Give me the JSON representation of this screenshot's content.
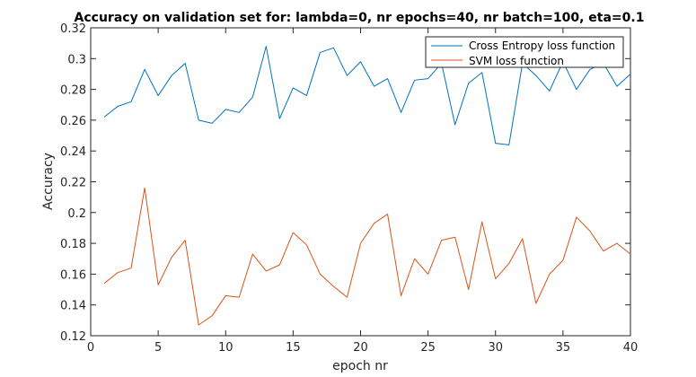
{
  "chart_data": {
    "type": "line",
    "title": "Accuracy on validation set for: lambda=0, nr epochs=40, nr batch=100, eta=0.1",
    "xlabel": "epoch nr",
    "ylabel": "Accuracy",
    "xlim": [
      0,
      40
    ],
    "ylim": [
      0.12,
      0.32
    ],
    "xticks": [
      0,
      5,
      10,
      15,
      20,
      25,
      30,
      35,
      40
    ],
    "xtick_labels": [
      "0",
      "5",
      "10",
      "15",
      "20",
      "25",
      "30",
      "35",
      "40"
    ],
    "yticks": [
      0.12,
      0.14,
      0.16,
      0.18,
      0.2,
      0.22,
      0.24,
      0.26,
      0.28,
      0.3,
      0.32
    ],
    "ytick_labels": [
      "0.12",
      "0.14",
      "0.16",
      "0.18",
      "0.2",
      "0.22",
      "0.24",
      "0.26",
      "0.28",
      "0.3",
      "0.32"
    ],
    "grid": false,
    "legend_position": "top-right",
    "x": [
      1,
      2,
      3,
      4,
      5,
      6,
      7,
      8,
      9,
      10,
      11,
      12,
      13,
      14,
      15,
      16,
      17,
      18,
      19,
      20,
      21,
      22,
      23,
      24,
      25,
      26,
      27,
      28,
      29,
      30,
      31,
      32,
      33,
      34,
      35,
      36,
      37,
      38,
      39,
      40
    ],
    "series": [
      {
        "name": "Cross Entropy loss function",
        "color": "#0072bd",
        "values": [
          0.262,
          0.269,
          0.272,
          0.293,
          0.276,
          0.289,
          0.297,
          0.26,
          0.258,
          0.267,
          0.265,
          0.275,
          0.308,
          0.261,
          0.281,
          0.276,
          0.304,
          0.307,
          0.289,
          0.298,
          0.282,
          0.287,
          0.265,
          0.286,
          0.287,
          0.297,
          0.257,
          0.284,
          0.291,
          0.245,
          0.244,
          0.297,
          0.289,
          0.279,
          0.298,
          0.28,
          0.293,
          0.297,
          0.282,
          0.29
        ]
      },
      {
        "name": "SVM loss function",
        "color": "#d95319",
        "values": [
          0.154,
          0.161,
          0.164,
          0.216,
          0.153,
          0.171,
          0.182,
          0.127,
          0.133,
          0.146,
          0.145,
          0.173,
          0.162,
          0.166,
          0.187,
          0.179,
          0.16,
          0.152,
          0.145,
          0.18,
          0.193,
          0.199,
          0.146,
          0.17,
          0.16,
          0.182,
          0.184,
          0.15,
          0.194,
          0.157,
          0.167,
          0.183,
          0.141,
          0.16,
          0.169,
          0.197,
          0.188,
          0.175,
          0.18,
          0.173
        ]
      }
    ]
  }
}
